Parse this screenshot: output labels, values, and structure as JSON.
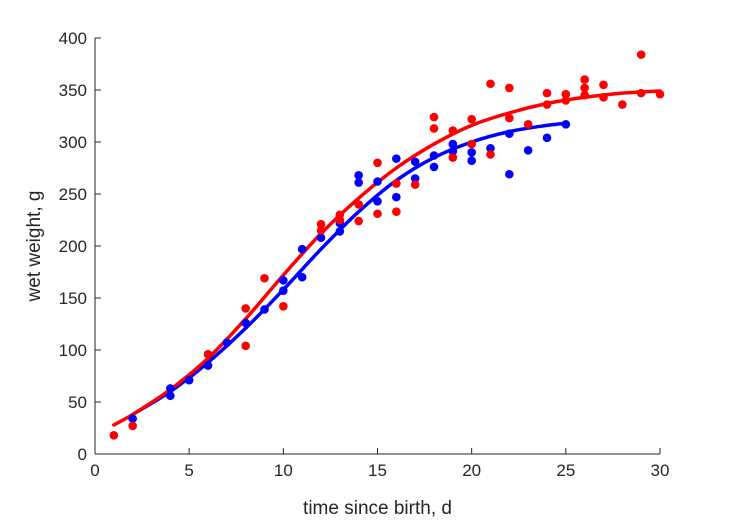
{
  "chart_data": {
    "type": "scatter",
    "xlabel": "time since birth, d",
    "ylabel": "wet weight, g",
    "xlim": [
      0,
      30
    ],
    "ylim": [
      0,
      400
    ],
    "xticks": [
      0,
      5,
      10,
      15,
      20,
      25,
      30
    ],
    "yticks": [
      0,
      50,
      100,
      150,
      200,
      250,
      300,
      350,
      400
    ],
    "grid": false,
    "series": [
      {
        "color": "#0000ff",
        "points": [
          [
            2,
            34
          ],
          [
            4,
            56
          ],
          [
            4,
            63
          ],
          [
            5,
            71
          ],
          [
            6,
            85
          ],
          [
            7,
            107
          ],
          [
            8,
            126
          ],
          [
            9,
            139
          ],
          [
            10,
            157
          ],
          [
            10,
            167
          ],
          [
            11,
            170
          ],
          [
            11,
            197
          ],
          [
            12,
            208
          ],
          [
            13,
            214
          ],
          [
            13,
            222
          ],
          [
            14,
            261
          ],
          [
            14,
            268
          ],
          [
            15,
            243
          ],
          [
            15,
            262
          ],
          [
            16,
            247
          ],
          [
            16,
            284
          ],
          [
            17,
            265
          ],
          [
            17,
            281
          ],
          [
            18,
            276
          ],
          [
            18,
            287
          ],
          [
            19,
            291
          ],
          [
            19,
            298
          ],
          [
            20,
            282
          ],
          [
            20,
            290
          ],
          [
            21,
            294
          ],
          [
            22,
            308
          ],
          [
            22,
            269
          ],
          [
            23,
            292
          ],
          [
            24,
            304
          ],
          [
            25,
            317
          ]
        ],
        "fit": [
          [
            2,
            38
          ],
          [
            4,
            60
          ],
          [
            6,
            88
          ],
          [
            8,
            121
          ],
          [
            10,
            158
          ],
          [
            12,
            197
          ],
          [
            14,
            233
          ],
          [
            16,
            263
          ],
          [
            18,
            285
          ],
          [
            20,
            300
          ],
          [
            22,
            310
          ],
          [
            24,
            316
          ],
          [
            25,
            318
          ]
        ]
      },
      {
        "color": "#ff0000",
        "points": [
          [
            1,
            18
          ],
          [
            2,
            27
          ],
          [
            6,
            96
          ],
          [
            8,
            104
          ],
          [
            8,
            140
          ],
          [
            9,
            169
          ],
          [
            10,
            142
          ],
          [
            12,
            215
          ],
          [
            12,
            221
          ],
          [
            13,
            225
          ],
          [
            13,
            230
          ],
          [
            14,
            224
          ],
          [
            14,
            240
          ],
          [
            15,
            231
          ],
          [
            15,
            280
          ],
          [
            16,
            233
          ],
          [
            16,
            260
          ],
          [
            17,
            259
          ],
          [
            18,
            313
          ],
          [
            18,
            324
          ],
          [
            19,
            285
          ],
          [
            19,
            311
          ],
          [
            20,
            298
          ],
          [
            20,
            322
          ],
          [
            21,
            288
          ],
          [
            21,
            356
          ],
          [
            22,
            323
          ],
          [
            22,
            352
          ],
          [
            23,
            317
          ],
          [
            24,
            336
          ],
          [
            24,
            347
          ],
          [
            25,
            340
          ],
          [
            25,
            346
          ],
          [
            26,
            345
          ],
          [
            26,
            352
          ],
          [
            26,
            360
          ],
          [
            27,
            343
          ],
          [
            27,
            355
          ],
          [
            28,
            336
          ],
          [
            29,
            347
          ],
          [
            29,
            384
          ],
          [
            30,
            346
          ]
        ],
        "fit": [
          [
            1,
            28
          ],
          [
            2,
            38
          ],
          [
            4,
            62
          ],
          [
            6,
            92
          ],
          [
            8,
            130
          ],
          [
            10,
            172
          ],
          [
            12,
            212
          ],
          [
            14,
            246
          ],
          [
            16,
            275
          ],
          [
            18,
            298
          ],
          [
            20,
            316
          ],
          [
            22,
            328
          ],
          [
            24,
            337
          ],
          [
            26,
            343
          ],
          [
            28,
            347
          ],
          [
            30,
            349
          ]
        ]
      }
    ]
  }
}
